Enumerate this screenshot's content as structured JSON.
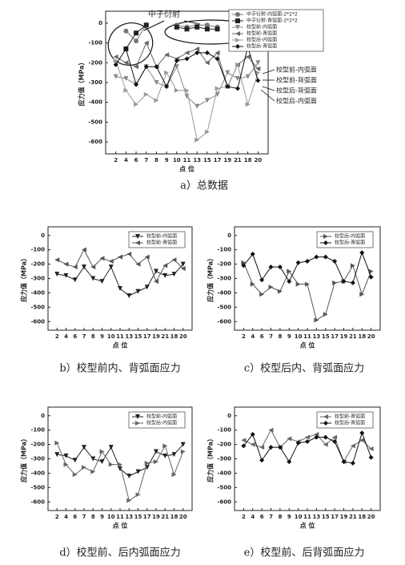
{
  "chart_data": [
    {
      "type": "line",
      "caption": "a）总数据",
      "x_label": "点  位",
      "y_label": "应力值（MPa）",
      "categories": [
        "2",
        "4",
        "6",
        "7",
        "8",
        "9",
        "10",
        "11",
        "13",
        "15",
        "17",
        "19",
        "21",
        "18",
        "20"
      ],
      "ylim": [
        -660,
        60
      ],
      "yticks": [
        0,
        -100,
        -200,
        -300,
        -400,
        -500,
        -600
      ],
      "annotations": [
        "中子衍射",
        "校型前-内弧面",
        "校型前-背弧面",
        "校型后-背弧面",
        "校型后-内弧面"
      ],
      "series": [
        {
          "name": "中子衍射-内弧面-2*2*2",
          "color": "#777777",
          "marker": "circle",
          "values": [
            null,
            -40,
            -90,
            -10,
            null,
            null,
            -10,
            -20,
            -10,
            -10,
            -20,
            null,
            null,
            null,
            null
          ]
        },
        {
          "name": "中子衍射-背弧面-2*2*2",
          "color": "#222222",
          "marker": "square",
          "values": [
            null,
            -130,
            -50,
            -10,
            null,
            null,
            -20,
            -30,
            -20,
            -30,
            -30,
            null,
            null,
            null,
            null
          ]
        },
        {
          "name": "校型前-内弧面",
          "color": "#888888",
          "marker": "down",
          "values": [
            -270,
            -280,
            -310,
            -220,
            -300,
            -320,
            -220,
            -370,
            -420,
            -390,
            -360,
            -250,
            -280,
            -270,
            -200
          ]
        },
        {
          "name": "校型前-背弧面",
          "color": "#666666",
          "marker": "left",
          "values": [
            -170,
            -200,
            -220,
            -100,
            -220,
            -160,
            -180,
            -150,
            -130,
            -200,
            -150,
            -320,
            -210,
            -170,
            -230
          ]
        },
        {
          "name": "校型后-内弧面",
          "color": "#999999",
          "marker": "right",
          "values": [
            -190,
            -340,
            -410,
            -360,
            -390,
            -250,
            -340,
            -340,
            -590,
            -550,
            -330,
            -320,
            -210,
            -410,
            -250
          ]
        },
        {
          "name": "校型后-背弧面",
          "color": "#111111",
          "marker": "diamond",
          "values": [
            -210,
            -130,
            -310,
            -220,
            -220,
            -320,
            -190,
            -180,
            -150,
            -150,
            -180,
            -320,
            -330,
            -120,
            -290
          ]
        }
      ]
    },
    {
      "type": "line",
      "caption": "b）校型前内、背弧面应力",
      "x_label": "点  位",
      "y_label": "应力值（MPa）",
      "categories": [
        "2",
        "4",
        "6",
        "7",
        "8",
        "9",
        "10",
        "11",
        "13",
        "15",
        "17",
        "19",
        "21",
        "18",
        "20"
      ],
      "ylim": [
        -660,
        60
      ],
      "yticks": [
        0,
        -100,
        -200,
        -300,
        -400,
        -500,
        -600
      ],
      "series": [
        {
          "name": "校型前-内弧面",
          "color": "#222222",
          "marker": "down",
          "values": [
            -270,
            -280,
            -310,
            -220,
            -300,
            -320,
            -220,
            -370,
            -420,
            -390,
            -360,
            -250,
            -280,
            -270,
            -200
          ]
        },
        {
          "name": "校型前-背弧面",
          "color": "#555555",
          "marker": "left",
          "values": [
            -170,
            -200,
            -220,
            -100,
            -220,
            -160,
            -180,
            -150,
            -130,
            -200,
            -150,
            -320,
            -210,
            -170,
            -230
          ]
        }
      ]
    },
    {
      "type": "line",
      "caption": "c）校型后内、背弧面应力",
      "x_label": "点  位",
      "y_label": "应力值（MPa）",
      "categories": [
        "2",
        "4",
        "6",
        "7",
        "8",
        "9",
        "10",
        "11",
        "13",
        "15",
        "17",
        "19",
        "21",
        "18",
        "20"
      ],
      "ylim": [
        -660,
        60
      ],
      "yticks": [
        0,
        -100,
        -200,
        -300,
        -400,
        -500,
        -600
      ],
      "series": [
        {
          "name": "校型后-内弧面",
          "color": "#555555",
          "marker": "right",
          "values": [
            -190,
            -340,
            -410,
            -360,
            -390,
            -250,
            -340,
            -340,
            -590,
            -550,
            -330,
            -320,
            -210,
            -410,
            -250
          ]
        },
        {
          "name": "校型后-背弧面",
          "color": "#111111",
          "marker": "diamond",
          "values": [
            -210,
            -130,
            -310,
            -220,
            -220,
            -320,
            -190,
            -180,
            -150,
            -150,
            -180,
            -320,
            -330,
            -120,
            -290
          ]
        }
      ]
    },
    {
      "type": "line",
      "caption": "d）校型前、后内弧面应力",
      "x_label": "点  位",
      "y_label": "应力值（MPa）",
      "categories": [
        "2",
        "4",
        "6",
        "7",
        "8",
        "9",
        "10",
        "11",
        "13",
        "15",
        "17",
        "19",
        "21",
        "18",
        "20"
      ],
      "ylim": [
        -660,
        60
      ],
      "yticks": [
        0,
        -100,
        -200,
        -300,
        -400,
        -500,
        -600
      ],
      "series": [
        {
          "name": "校型前-内弧面",
          "color": "#222222",
          "marker": "down",
          "values": [
            -270,
            -280,
            -310,
            -220,
            -300,
            -320,
            -220,
            -370,
            -420,
            -390,
            -360,
            -250,
            -280,
            -270,
            -200
          ]
        },
        {
          "name": "校型后-内弧面",
          "color": "#666666",
          "marker": "right",
          "values": [
            -190,
            -340,
            -410,
            -360,
            -390,
            -250,
            -340,
            -340,
            -590,
            -550,
            -330,
            -320,
            -210,
            -410,
            -250
          ]
        }
      ]
    },
    {
      "type": "line",
      "caption": "e）校型前、后背弧面应力",
      "x_label": "点  位",
      "y_label": "应力值（MPa）",
      "categories": [
        "2",
        "4",
        "6",
        "7",
        "8",
        "9",
        "10",
        "11",
        "13",
        "15",
        "17",
        "19",
        "21",
        "18",
        "20"
      ],
      "ylim": [
        -660,
        60
      ],
      "yticks": [
        0,
        -100,
        -200,
        -300,
        -400,
        -500,
        -600
      ],
      "series": [
        {
          "name": "校型前-背弧面",
          "color": "#666666",
          "marker": "left",
          "values": [
            -170,
            -200,
            -220,
            -100,
            -220,
            -160,
            -180,
            -150,
            -130,
            -200,
            -150,
            -320,
            -210,
            -170,
            -230
          ]
        },
        {
          "name": "校型后-背弧面",
          "color": "#111111",
          "marker": "diamond",
          "values": [
            -210,
            -130,
            -310,
            -220,
            -220,
            -320,
            -190,
            -180,
            -150,
            -150,
            -180,
            -320,
            -330,
            -120,
            -290
          ]
        }
      ]
    }
  ]
}
